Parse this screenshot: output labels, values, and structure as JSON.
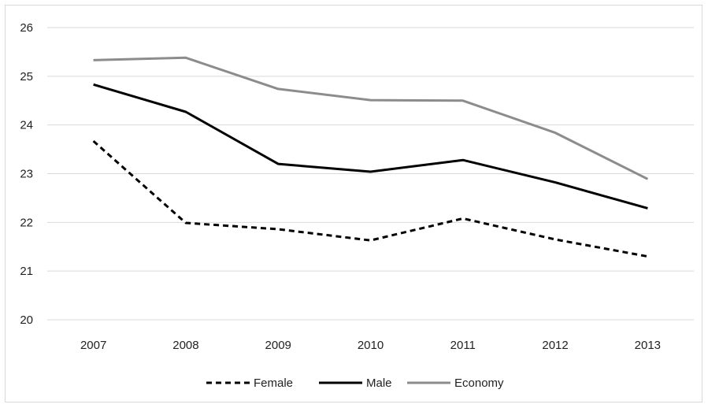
{
  "chart_data": {
    "type": "line",
    "title": "",
    "xlabel": "",
    "ylabel": "",
    "x": [
      "2007",
      "2008",
      "2009",
      "2010",
      "2011",
      "2012",
      "2013"
    ],
    "ylim": [
      20,
      26
    ],
    "yticks": [
      "20",
      "21",
      "22",
      "23",
      "24",
      "25",
      "26"
    ],
    "grid": "horizontal",
    "legend_position": "bottom",
    "series": [
      {
        "name": "Female",
        "values": [
          23.67,
          21.99,
          21.86,
          21.63,
          22.08,
          21.65,
          21.3
        ],
        "color": "#000000",
        "dash": "dashed"
      },
      {
        "name": "Male",
        "values": [
          24.83,
          24.27,
          23.2,
          23.04,
          23.28,
          22.82,
          22.29
        ],
        "color": "#000000",
        "dash": "solid"
      },
      {
        "name": "Economy",
        "values": [
          25.33,
          25.38,
          24.74,
          24.51,
          24.5,
          23.84,
          22.89
        ],
        "color": "#8c8c8c",
        "dash": "solid"
      }
    ]
  }
}
